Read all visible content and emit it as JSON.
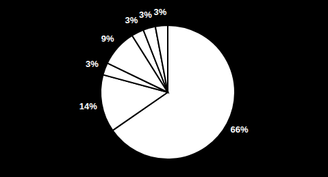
{
  "chart_data": {
    "type": "pie",
    "values": [
      66,
      14,
      3,
      9,
      3,
      3,
      3
    ],
    "value_labels": [
      "66%",
      "14%",
      "3%",
      "9%",
      "3%",
      "3%",
      "3%"
    ],
    "color": "#ffffff",
    "data_labels": true
  }
}
